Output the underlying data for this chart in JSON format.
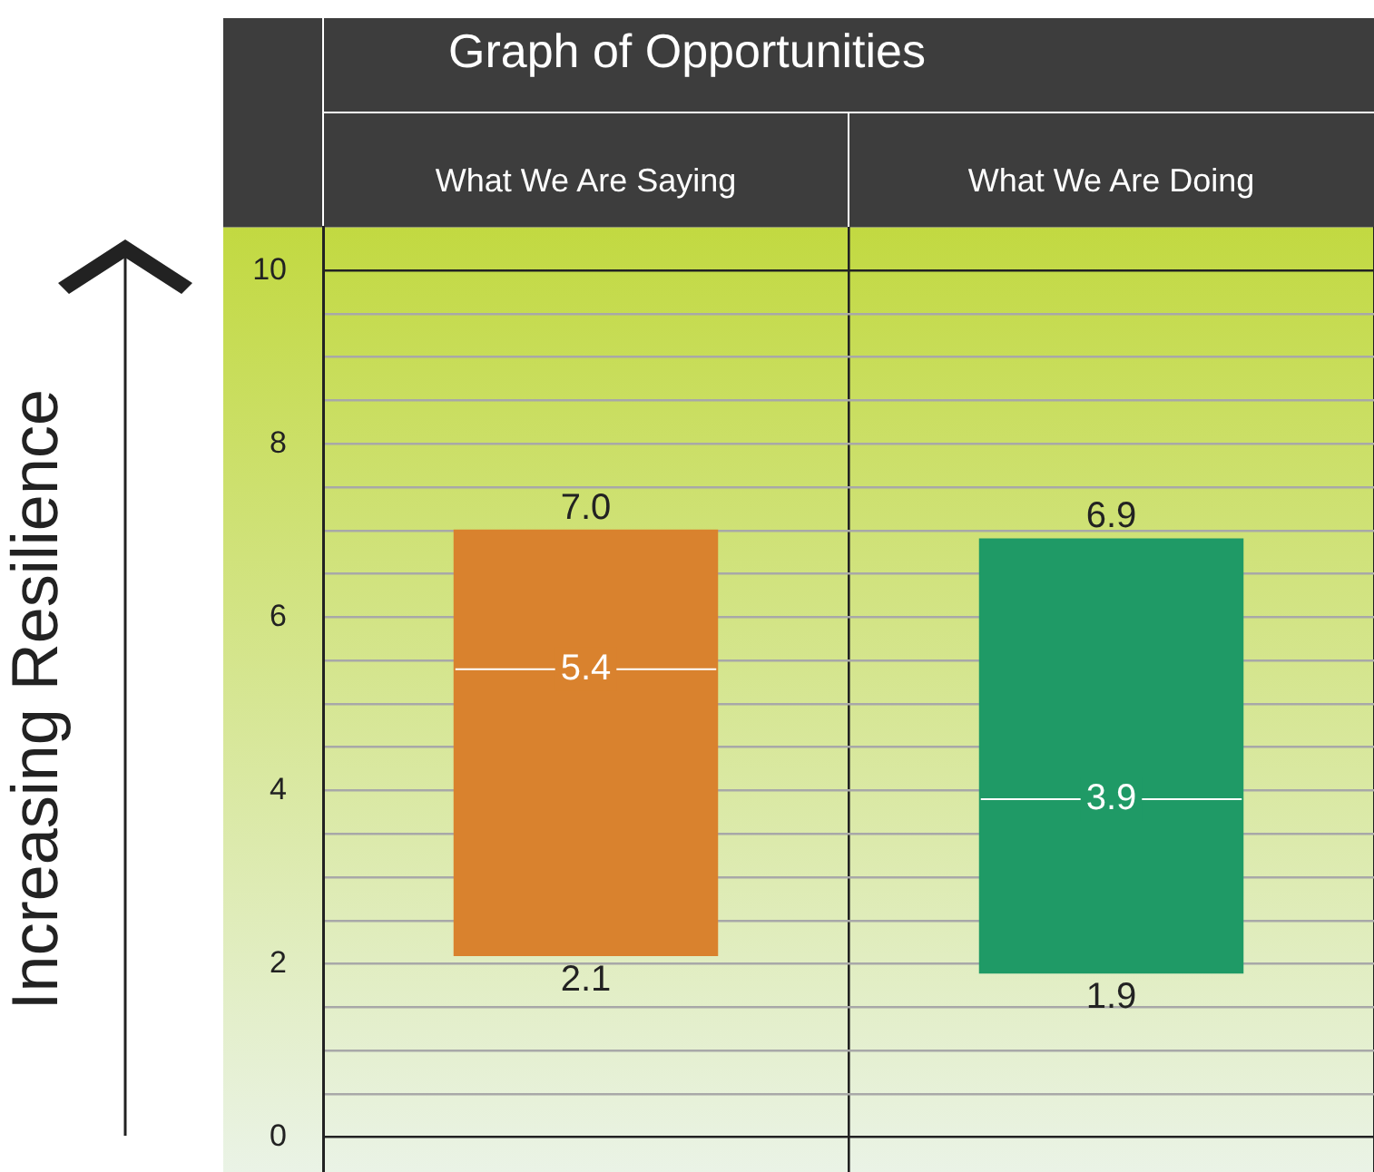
{
  "chart_data": {
    "type": "box",
    "title": "Graph of Opportunities",
    "ylabel": "Increasing Resilience",
    "categories": [
      "What We Are Saying",
      "What We Are Doing"
    ],
    "boxes": [
      {
        "low": 2.1,
        "q1": 2.1,
        "median": 5.4,
        "q3": 7.0,
        "high": 7.0
      },
      {
        "low": 1.9,
        "q1": 1.9,
        "median": 3.9,
        "q3": 6.9,
        "high": 6.9
      }
    ],
    "colors": [
      "#d9822e",
      "#1f9a66"
    ],
    "ylim": [
      -0.4,
      10.5
    ],
    "yticks": [
      0,
      {
        "value": 0.5,
        "label": null
      },
      {
        "value": 1,
        "label": null
      },
      {
        "value": 1.5,
        "label": null
      },
      2,
      {
        "value": 2.5,
        "label": null
      },
      {
        "value": 3,
        "label": null
      },
      {
        "value": 3.5,
        "label": null
      },
      4,
      {
        "value": 4.5,
        "label": null
      },
      {
        "value": 5,
        "label": null
      },
      {
        "value": 5.5,
        "label": null
      },
      6,
      {
        "value": 6.5,
        "label": null
      },
      {
        "value": 7,
        "label": null
      },
      {
        "value": 7.5,
        "label": null
      },
      8,
      {
        "value": 8.5,
        "label": null
      },
      {
        "value": 9,
        "label": null
      },
      {
        "value": 9.5,
        "label": null
      },
      10
    ],
    "grid": true,
    "annotations": [
      {
        "text": "7.0",
        "x": "What We Are Saying",
        "y": 7.0
      },
      {
        "text": "5.4",
        "x": "What We Are Saying",
        "y": 5.4
      },
      {
        "text": "2.1",
        "x": "What We Are Saying",
        "y": 2.1
      },
      {
        "text": "6.9",
        "x": "What We Are Doing",
        "y": 6.9
      },
      {
        "text": "3.9",
        "x": "What We Are Doing",
        "y": 3.9
      },
      {
        "text": "1.9",
        "x": "What We Are Doing",
        "y": 1.9
      }
    ]
  }
}
